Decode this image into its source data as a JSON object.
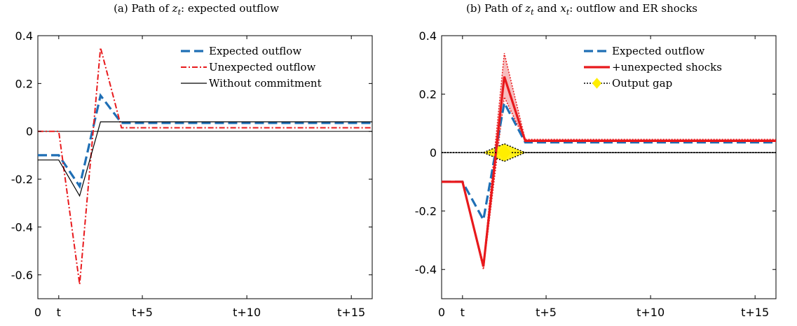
{
  "colors": {
    "expected": "#1f6fb5",
    "unexpected": "#e8191c",
    "without_commitment": "#000000",
    "output_gap_fill": "#ffee00",
    "band": "#f4a7a8"
  },
  "chart_data": [
    {
      "type": "line",
      "title": "(a) Path of z_t: expected outflow",
      "title_parts": {
        "prefix": "(a) Path of ",
        "var1": "z",
        "sub1": "t",
        "suffix": ": expected outflow"
      },
      "xlabel": "",
      "ylabel": "",
      "xlim": [
        -1,
        15
      ],
      "ylim": [
        -0.7,
        0.4
      ],
      "xticks": [
        -1,
        0,
        4,
        9,
        14
      ],
      "xtick_labels": [
        "0",
        "t",
        "t+5",
        "t+10",
        "t+15"
      ],
      "yticks": [
        0.4,
        0.2,
        0,
        -0.2,
        -0.4,
        -0.6
      ],
      "ytick_labels": [
        "0.4",
        "0.2",
        "0",
        "-0.2",
        "-0.4",
        "-0.6"
      ],
      "grid": false,
      "legend_position": "top-right",
      "x": [
        -1,
        0,
        1,
        2,
        3,
        15
      ],
      "series": [
        {
          "name": "Expected outflow",
          "style": "dashed",
          "color_key": "expected",
          "values": [
            -0.1,
            -0.1,
            -0.23,
            0.15,
            0.035,
            0.035
          ]
        },
        {
          "name": "Unexpected outflow",
          "style": "dashdot",
          "color_key": "unexpected",
          "values": [
            0,
            0,
            -0.64,
            0.35,
            0.015,
            0.015
          ]
        },
        {
          "name": "Without commitment",
          "style": "solid",
          "color_key": "without_commitment",
          "values": [
            -0.12,
            -0.12,
            -0.27,
            0.04,
            0.04,
            0.04
          ]
        }
      ],
      "zero_line": true
    },
    {
      "type": "line",
      "title": "(b) Path of z_t and x_t: outflow and ER shocks",
      "title_parts": {
        "prefix": "(b) Path of ",
        "var1": "z",
        "sub1": "t",
        "mid": " and ",
        "var2": "x",
        "sub2": "t",
        "suffix": ": outflow and ER shocks"
      },
      "xlabel": "",
      "ylabel": "",
      "xlim": [
        -1,
        15
      ],
      "ylim": [
        -0.5,
        0.4
      ],
      "xticks": [
        -1,
        0,
        4,
        9,
        14
      ],
      "xtick_labels": [
        "0",
        "t",
        "t+5",
        "t+10",
        "t+15"
      ],
      "yticks": [
        0.4,
        0.2,
        0,
        -0.2,
        -0.4
      ],
      "ytick_labels": [
        "0.4",
        "0.2",
        "0",
        "-0.2",
        "-0.4"
      ],
      "grid": false,
      "legend_position": "top-right",
      "x": [
        -1,
        0,
        1,
        2,
        3,
        15
      ],
      "series": [
        {
          "name": "Expected outflow",
          "style": "dashed",
          "color_key": "expected",
          "values": [
            -0.1,
            -0.1,
            -0.23,
            0.17,
            0.035,
            0.035
          ]
        },
        {
          "name": "+unexpected shocks",
          "style": "solid-thick",
          "color_key": "unexpected",
          "values": [
            -0.1,
            -0.1,
            -0.39,
            0.26,
            0.04,
            0.04
          ],
          "band_upper": [
            -0.1,
            -0.1,
            -0.38,
            0.34,
            0.045,
            0.045
          ],
          "band_lower": [
            -0.1,
            -0.1,
            -0.4,
            0.19,
            0.04,
            0.04
          ]
        },
        {
          "name": "Output gap",
          "style": "dotted-diamond",
          "color_key": "without_commitment",
          "values": [
            0,
            0,
            0,
            0,
            0,
            0
          ],
          "band_upper": [
            0,
            0,
            0,
            0.03,
            0,
            0
          ],
          "band_lower": [
            0,
            0,
            0,
            -0.03,
            0,
            0
          ]
        }
      ],
      "zero_line": true
    }
  ]
}
